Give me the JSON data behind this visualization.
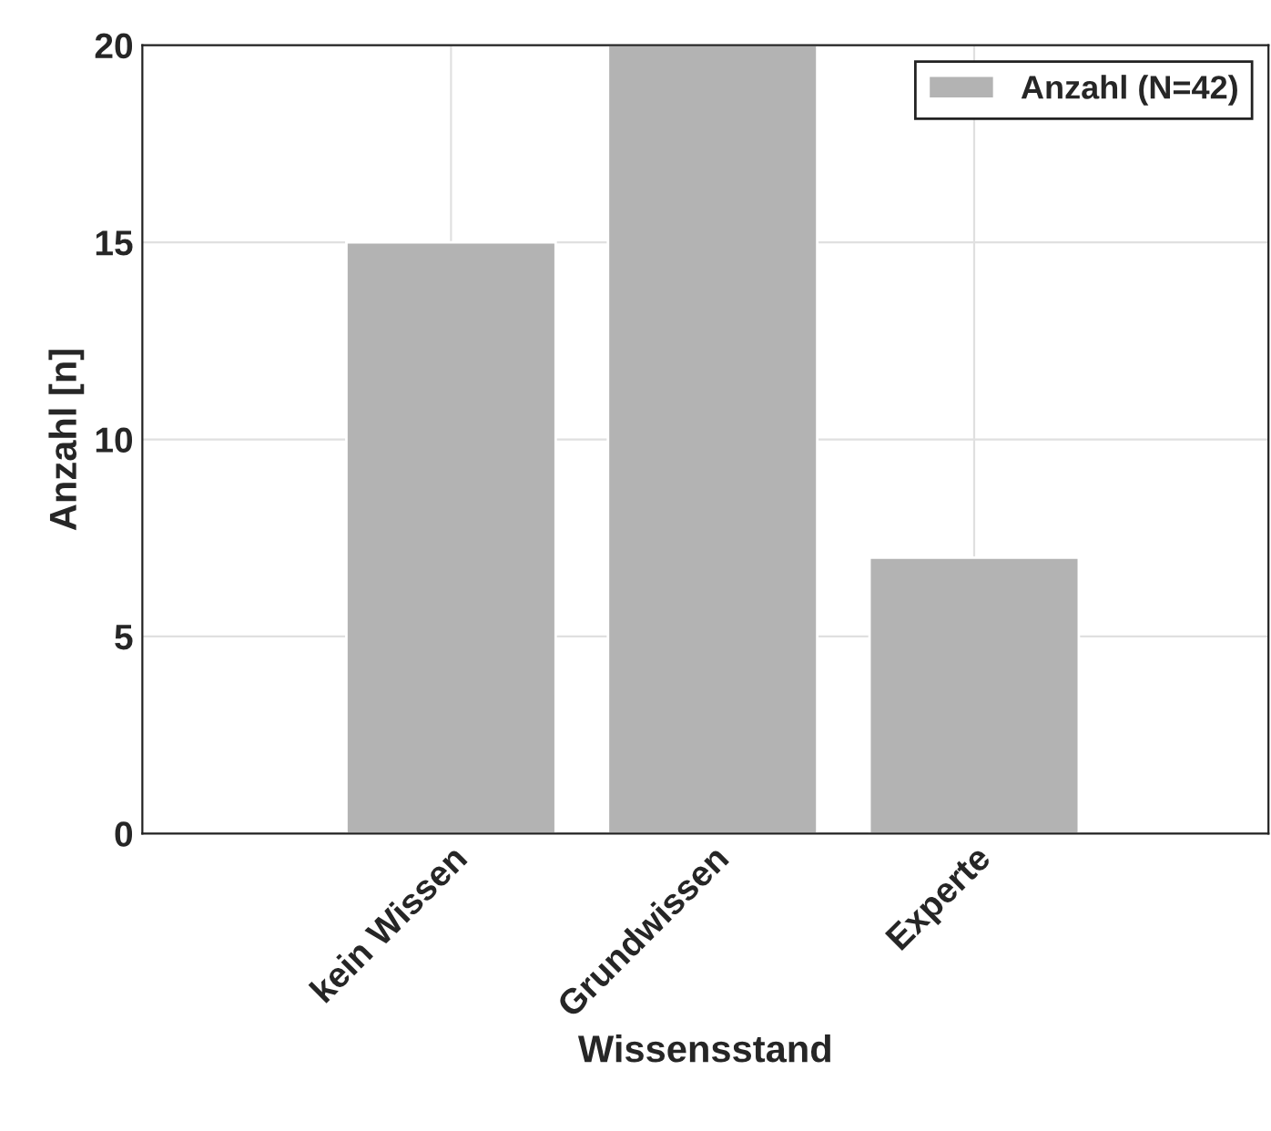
{
  "chart_data": {
    "type": "bar",
    "xlabel": "Wissensstand",
    "ylabel": "Anzahl [n]",
    "categories": [
      "kein Wissen",
      "Grundwissen",
      "Experte"
    ],
    "series": [
      {
        "name": "Anzahl (N=42)",
        "color": "#b3b3b3",
        "values": [
          15,
          20,
          7
        ]
      }
    ],
    "ylim": [
      0,
      20
    ],
    "yticks": [
      0,
      5,
      10,
      15,
      20
    ],
    "grid": true,
    "legend": "top right"
  }
}
